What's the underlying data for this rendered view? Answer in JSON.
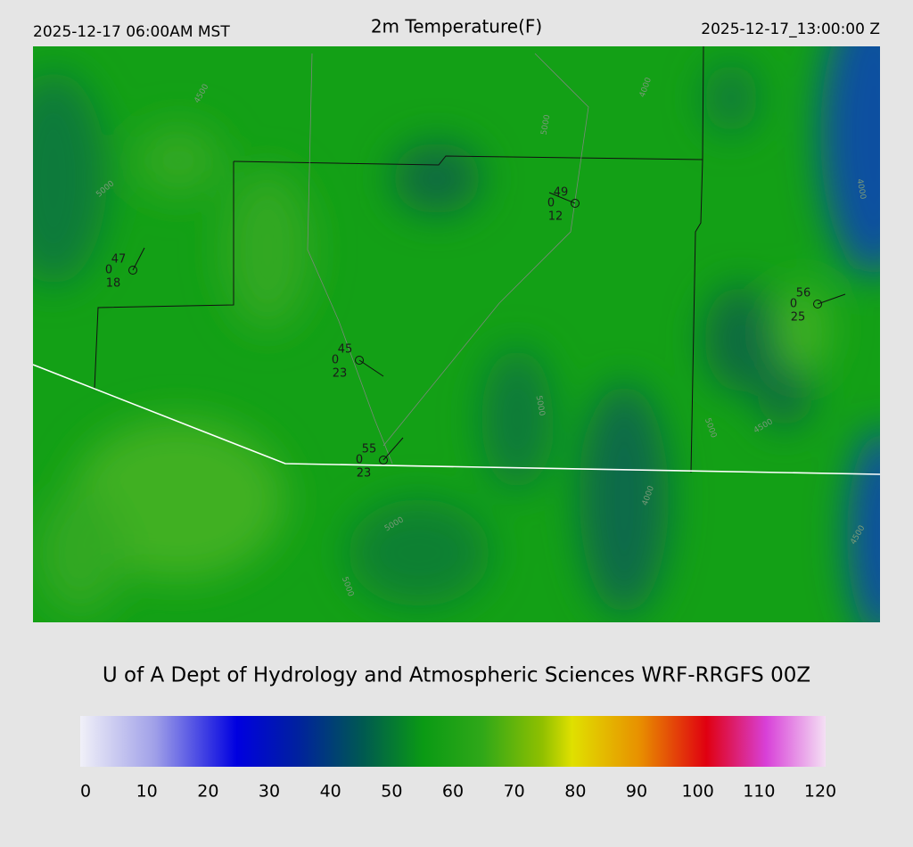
{
  "header": {
    "left": "2025-12-17 06:00AM MST",
    "title": "2m Temperature(F)",
    "right": "2025-12-17_13:00:00 Z"
  },
  "stations": [
    {
      "temp": "47",
      "precip": "0",
      "dew": "18"
    },
    {
      "temp": "49",
      "precip": "0",
      "dew": "12"
    },
    {
      "temp": "56",
      "precip": "0",
      "dew": "25"
    },
    {
      "temp": "45",
      "precip": "0",
      "dew": "23"
    },
    {
      "temp": "55",
      "precip": "0",
      "dew": "23"
    }
  ],
  "contour_labels": [
    "5000",
    "4500",
    "5000",
    "4000",
    "5000",
    "4000",
    "5000",
    "4500",
    "5000",
    "4000",
    "5000",
    "4500"
  ],
  "credit": "U of A Dept of Hydrology and Atmospheric Sciences WRF-RRGFS 00Z",
  "colorbar": {
    "ticks": [
      0,
      10,
      20,
      30,
      40,
      50,
      60,
      70,
      80,
      90,
      100,
      110,
      120
    ]
  }
}
